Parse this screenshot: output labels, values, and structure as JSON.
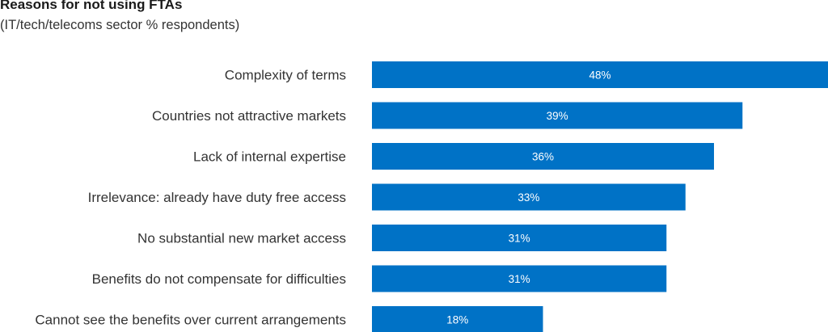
{
  "chart_data": {
    "type": "bar",
    "orientation": "horizontal",
    "title": "Reasons for not using FTAs",
    "subtitle": "(IT/tech/telecoms sector % respondents)",
    "categories": [
      "Complexity of terms",
      "Countries not attractive markets",
      "Lack of internal expertise",
      "Irrelevance: already have duty free access",
      "No substantial new market access",
      "Benefits do not compensate for difficulties",
      "Cannot see the benefits over current arrangements"
    ],
    "values": [
      48,
      39,
      36,
      33,
      31,
      31,
      18
    ],
    "value_labels": [
      "48%",
      "39%",
      "36%",
      "33%",
      "31%",
      "31%",
      "18%"
    ],
    "xlim": [
      0,
      48
    ],
    "grid": false,
    "bar_color": "#0072c6"
  }
}
